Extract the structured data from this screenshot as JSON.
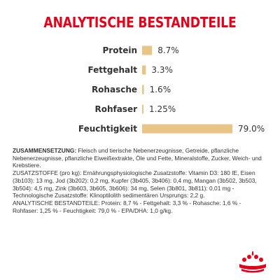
{
  "title": "ANALYTISCHE BESTANDTEILE",
  "chart_data": {
    "type": "bar",
    "orientation": "horizontal",
    "categories": [
      "Protein",
      "Fettgehalt",
      "Rohasche",
      "Rohfaser",
      "Feuchtigkeit"
    ],
    "values": [
      8.7,
      3.3,
      1.6,
      1.25,
      79.0
    ],
    "value_labels": [
      "8.7%",
      "3.3%",
      "1.6%",
      "1.25%",
      "79.0%"
    ],
    "unit": "%",
    "xlim": [
      0,
      79.0
    ],
    "bar_color": "#e8c586",
    "grid": false,
    "legend": "none"
  },
  "composition": {
    "heading": "ZUSAMMENSETZUNG:",
    "text": " Fleisch und tierische Nebenerzeugnisse, Getreide, pflanzliche Nebenerzeugnisse, pflanzliche Eiweißextrakte, Öle und Fette, Mineralstoffe, Zucker, Weich- und Krebstiere."
  },
  "additives": {
    "heading": "ZUSATZSTOFFE",
    "text": " (pro kg): Ernährungsphysiologische Zusatzstoffe: Vitamin D3: 180 IE, Eisen (3b103): 13 mg, Jod (3b202): 0,2 mg, Kupfer (3b405, 3b406): 0,4 mg, Mangan (3b502, 3b503, 3b504): 4,5 mg, Zink (3b603, 3b605, 3b606): 34 mg, Selen (3b801, 3b811): 0,01 mg - Technologische Zusatzstoffe: Klinoptilolith sedimentären Ursprungs: 2,2 g."
  },
  "analysis": {
    "heading": "ANALYTISCHE BESTANDTEILE:",
    "text": " Protein: 8,7 % - Fettgehalt: 3,3 % - Rohasche: 1,6 % - Rohfaser: 1,25 % - Feuchtigkeit: 79,0 % - EPA/DHA: 1,0 g/kg."
  },
  "colors": {
    "title": "#e2001a",
    "text": "#333333",
    "bar": "#e8c586",
    "logo": "#e2001a"
  },
  "logo": {
    "icon": "royal-canin-crown-icon"
  }
}
